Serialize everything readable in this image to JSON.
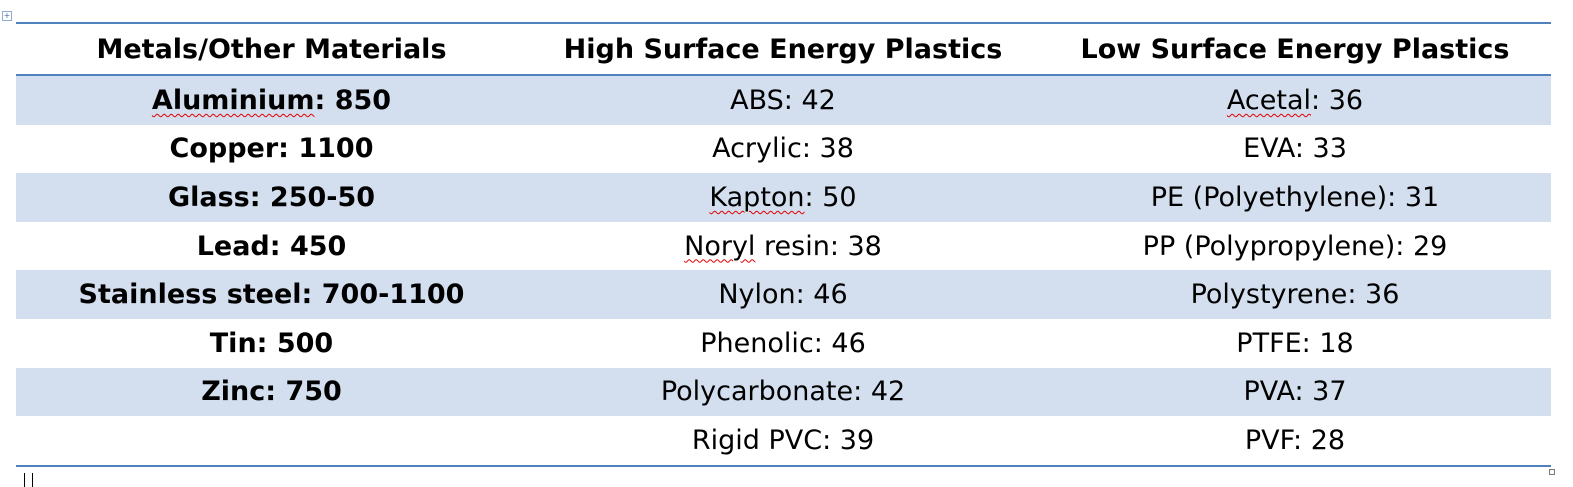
{
  "table": {
    "headers": [
      "Metals/Other Materials",
      "High Surface Energy Plastics",
      "Low Surface Energy Plastics"
    ],
    "rows": [
      [
        "Aluminium: 850",
        "ABS: 42",
        "Acetal: 36"
      ],
      [
        "Copper: 1100",
        "Acrylic: 38",
        "EVA: 33"
      ],
      [
        "Glass: 250-50",
        "Kapton: 50",
        "PE (Polyethylene): 31"
      ],
      [
        "Lead: 450",
        "Noryl resin: 38",
        "PP (Polypropylene): 29"
      ],
      [
        "Stainless steel: 700-1100",
        "Nylon: 46",
        "Polystyrene: 36"
      ],
      [
        "Tin: 500",
        "Phenolic: 46",
        "PTFE: 18"
      ],
      [
        "Zinc: 750",
        "Polycarbonate: 42",
        "PVA: 37"
      ],
      [
        "",
        "Rigid PVC: 39",
        "PVF: 28"
      ]
    ],
    "split_labels": {
      "aluminium_word": "Aluminium",
      "aluminium_rest": ": 850",
      "acetal_word": "Acetal",
      "acetal_rest": ": 36",
      "kapton_word": "Kapton",
      "kapton_rest": ": 50",
      "noryl_word": "Noryl",
      "noryl_rest": " resin: 38"
    }
  },
  "colors": {
    "rule": "#4f81bd",
    "band": "#d3dfee",
    "spellcheck": "#e00000"
  },
  "icons": {
    "table_move_handle": "move-handle-icon",
    "table_resize_handle": "resize-handle-icon"
  }
}
